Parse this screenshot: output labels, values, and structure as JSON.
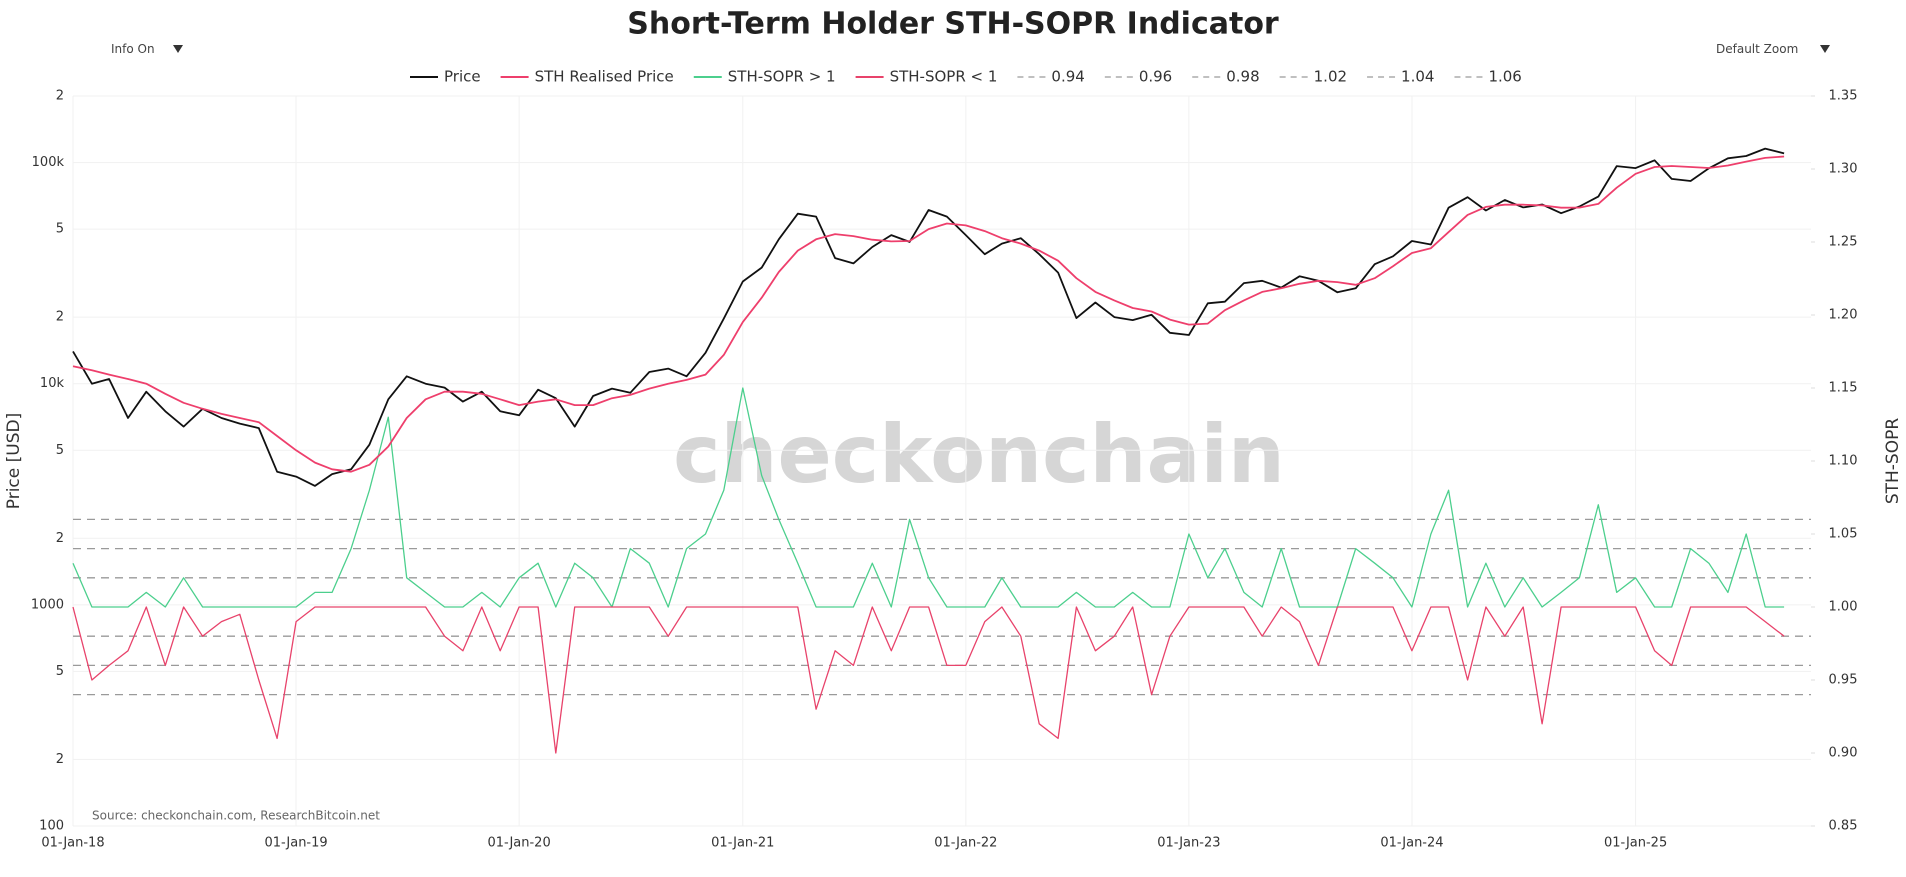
{
  "controls": {
    "info": "Info On",
    "zoom": "Default Zoom"
  },
  "chart_data": {
    "type": "line",
    "title": "Short-Term Holder STH-SOPR Indicator",
    "ylabel": "Price [USD]",
    "y2label": "STH-SOPR",
    "source": "Source: checkonchain.com, ResearchBitcoin.net",
    "watermark": "checkonchain",
    "log_y": true,
    "grid": true,
    "x": [
      "2018-01-01",
      "2018-02-01",
      "2018-03-01",
      "2018-04-01",
      "2018-05-01",
      "2018-06-01",
      "2018-07-01",
      "2018-08-01",
      "2018-09-01",
      "2018-10-01",
      "2018-11-01",
      "2018-12-01",
      "2019-01-01",
      "2019-02-01",
      "2019-03-01",
      "2019-04-01",
      "2019-05-01",
      "2019-06-01",
      "2019-07-01",
      "2019-08-01",
      "2019-09-01",
      "2019-10-01",
      "2019-11-01",
      "2019-12-01",
      "2020-01-01",
      "2020-02-01",
      "2020-03-01",
      "2020-04-01",
      "2020-05-01",
      "2020-06-01",
      "2020-07-01",
      "2020-08-01",
      "2020-09-01",
      "2020-10-01",
      "2020-11-01",
      "2020-12-01",
      "2021-01-01",
      "2021-02-01",
      "2021-03-01",
      "2021-04-01",
      "2021-05-01",
      "2021-06-01",
      "2021-07-01",
      "2021-08-01",
      "2021-09-01",
      "2021-10-01",
      "2021-11-01",
      "2021-12-01",
      "2022-01-01",
      "2022-02-01",
      "2022-03-01",
      "2022-04-01",
      "2022-05-01",
      "2022-06-01",
      "2022-07-01",
      "2022-08-01",
      "2022-09-01",
      "2022-10-01",
      "2022-11-01",
      "2022-12-01",
      "2023-01-01",
      "2023-02-01",
      "2023-03-01",
      "2023-04-01",
      "2023-05-01",
      "2023-06-01",
      "2023-07-01",
      "2023-08-01",
      "2023-09-01",
      "2023-10-01",
      "2023-11-01",
      "2023-12-01",
      "2024-01-01",
      "2024-02-01",
      "2024-03-01",
      "2024-04-01",
      "2024-05-01",
      "2024-06-01",
      "2024-07-01",
      "2024-08-01",
      "2024-09-01",
      "2024-10-01",
      "2024-11-01",
      "2024-12-01",
      "2025-01-01",
      "2025-02-01",
      "2025-03-01",
      "2025-04-01",
      "2025-05-01",
      "2025-06-01",
      "2025-07-01",
      "2025-08-01",
      "2025-09-01"
    ],
    "xlim": [
      "2018-01-01",
      "2025-10-15"
    ],
    "xticks": [
      {
        "value": "2018-01-01",
        "label": "01-Jan-18"
      },
      {
        "value": "2019-01-01",
        "label": "01-Jan-19"
      },
      {
        "value": "2020-01-01",
        "label": "01-Jan-20"
      },
      {
        "value": "2021-01-01",
        "label": "01-Jan-21"
      },
      {
        "value": "2022-01-01",
        "label": "01-Jan-22"
      },
      {
        "value": "2023-01-01",
        "label": "01-Jan-23"
      },
      {
        "value": "2024-01-01",
        "label": "01-Jan-24"
      },
      {
        "value": "2025-01-01",
        "label": "01-Jan-25"
      }
    ],
    "ylim": [
      100,
      200000
    ],
    "yticks": [
      100,
      {
        "value": 200,
        "label": "2"
      },
      {
        "value": 500,
        "label": "5"
      },
      1000,
      {
        "value": 2000,
        "label": "2"
      },
      {
        "value": 5000,
        "label": "5"
      },
      {
        "value": 10000,
        "label": "10k"
      },
      {
        "value": 20000,
        "label": "2"
      },
      {
        "value": 50000,
        "label": "5"
      },
      {
        "value": 100000,
        "label": "100k"
      },
      {
        "value": 200000,
        "label": "2"
      }
    ],
    "y2lim": [
      0.85,
      1.35
    ],
    "y2ticks": [
      0.85,
      {
        "value": 0.9,
        "label": "0.90"
      },
      0.95,
      {
        "value": 1.0,
        "label": "1.00"
      },
      1.05,
      {
        "value": 1.1,
        "label": "1.10"
      },
      1.15,
      {
        "value": 1.2,
        "label": "1.20"
      },
      1.25,
      {
        "value": 1.3,
        "label": "1.30"
      },
      1.35
    ],
    "series": [
      {
        "name": "Price",
        "color": "#111111",
        "values": [
          14000,
          10000,
          10500,
          7000,
          9200,
          7500,
          6400,
          7700,
          7000,
          6600,
          6300,
          4000,
          3800,
          3450,
          3900,
          4100,
          5300,
          8500,
          10800,
          10000,
          9600,
          8300,
          9200,
          7500,
          7200,
          9400,
          8600,
          6400,
          8800,
          9500,
          9100,
          11300,
          11700,
          10800,
          13800,
          19700,
          29000,
          33500,
          45000,
          58700,
          57000,
          37000,
          35000,
          41500,
          47000,
          43800,
          61000,
          57000,
          47000,
          38500,
          43000,
          45500,
          38500,
          31800,
          19800,
          23300,
          20000,
          19400,
          20500,
          17000,
          16600,
          23100,
          23500,
          28500,
          29200,
          27200,
          30600,
          29200,
          25900,
          27000,
          34700,
          37700,
          44200,
          42600,
          62500,
          69700,
          60700,
          67700,
          62700,
          64600,
          59000,
          63300,
          70200,
          96400,
          94400,
          102400,
          84400,
          82500,
          94200,
          104600,
          107100,
          115700,
          110000
        ]
      },
      {
        "name": "STH Realised Price",
        "color": "#ee3f6c",
        "values": [
          12000,
          11500,
          11000,
          10500,
          10000,
          9000,
          8200,
          7700,
          7300,
          7000,
          6700,
          5800,
          5000,
          4400,
          4100,
          4000,
          4300,
          5200,
          7000,
          8500,
          9200,
          9200,
          9000,
          8500,
          8000,
          8300,
          8500,
          8000,
          8000,
          8600,
          8900,
          9500,
          10000,
          10400,
          11000,
          13500,
          19000,
          24500,
          32000,
          40000,
          45000,
          47500,
          46500,
          44800,
          44000,
          44200,
          50000,
          53000,
          52000,
          49000,
          45500,
          43000,
          40000,
          36000,
          30000,
          26000,
          23800,
          22000,
          21200,
          19500,
          18500,
          18700,
          21500,
          23800,
          26000,
          27000,
          28300,
          29200,
          28800,
          28000,
          30000,
          34000,
          39000,
          41000,
          48500,
          58000,
          63000,
          64500,
          64500,
          64000,
          62500,
          62600,
          65000,
          77000,
          89000,
          95500,
          96500,
          95500,
          94500,
          97000,
          101000,
          105000,
          106500
        ]
      },
      {
        "name": "STH-SOPR > 1",
        "color": "#4ccf8d",
        "axis": "y2",
        "values": [
          1.03,
          1,
          1,
          1,
          1.01,
          1,
          1.02,
          1,
          1,
          1,
          1,
          1,
          1,
          1.01,
          1.01,
          1.04,
          1.08,
          1.13,
          1.02,
          1.01,
          1,
          1,
          1.01,
          1,
          1.02,
          1.03,
          1,
          1.03,
          1.02,
          1,
          1.04,
          1.03,
          1,
          1.04,
          1.05,
          1.08,
          1.15,
          1.09,
          1.06,
          1.03,
          1,
          1,
          1,
          1.03,
          1,
          1.06,
          1.02,
          1,
          1,
          1,
          1.02,
          1,
          1,
          1,
          1.01,
          1,
          1,
          1.01,
          1,
          1,
          1.05,
          1.02,
          1.04,
          1.01,
          1,
          1.04,
          1,
          1,
          1,
          1.04,
          1.03,
          1.02,
          1,
          1.05,
          1.08,
          1,
          1.03,
          1,
          1.02,
          1,
          1.01,
          1.02,
          1.07,
          1.01,
          1.02,
          1,
          1,
          1.04,
          1.03,
          1.01,
          1.05,
          1,
          1
        ]
      },
      {
        "name": "STH-SOPR < 1",
        "color": "#e8436b",
        "axis": "y2",
        "values": [
          1,
          0.95,
          0.96,
          0.97,
          1,
          0.96,
          1,
          0.98,
          0.99,
          0.995,
          0.95,
          0.91,
          0.99,
          1,
          1,
          1,
          1,
          1,
          1,
          1,
          0.98,
          0.97,
          1,
          0.97,
          1,
          1,
          0.9,
          1,
          1,
          1,
          1,
          1,
          0.98,
          1,
          1,
          1,
          1,
          1,
          1,
          1,
          0.93,
          0.97,
          0.96,
          1,
          0.97,
          1,
          1,
          0.96,
          0.96,
          0.99,
          1,
          0.98,
          0.92,
          0.91,
          1,
          0.97,
          0.98,
          1,
          0.94,
          0.98,
          1,
          1,
          1,
          1,
          0.98,
          1,
          0.99,
          0.96,
          1,
          1,
          1,
          1,
          0.97,
          1,
          1,
          0.95,
          1,
          0.98,
          1,
          0.92,
          1,
          1,
          1,
          1,
          1,
          0.97,
          0.96,
          1,
          1,
          1,
          1,
          0.99,
          0.98
        ]
      }
    ],
    "hlines": [
      0.94,
      0.96,
      0.98,
      1.02,
      1.04,
      1.06
    ],
    "hline_color": "#9a9a9a"
  }
}
